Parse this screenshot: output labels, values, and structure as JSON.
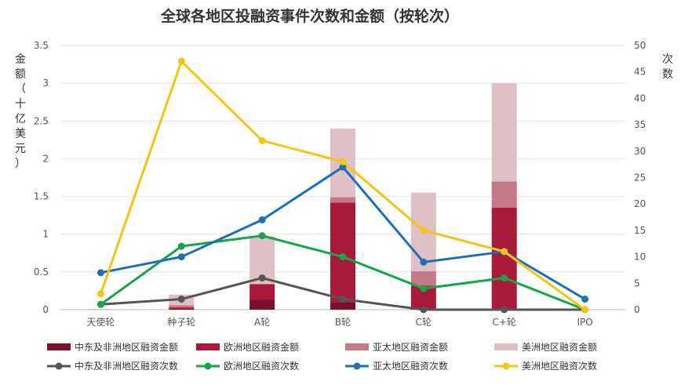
{
  "chart_data": {
    "type": "bar+line",
    "title": "全球各地区投融资事件次数和金额（按轮次）",
    "ylabel_left": "金额（十亿美元）",
    "ylabel_right": "次数",
    "categories": [
      "天使轮",
      "种子轮",
      "A轮",
      "B轮",
      "C轮",
      "C+轮",
      "IPO"
    ],
    "ylim_left": [
      0,
      3.5
    ],
    "yticks_left": [
      "0",
      "0.5",
      "1",
      "1.5",
      "2",
      "2.5",
      "3",
      "3.5"
    ],
    "ylim_right": [
      0,
      50
    ],
    "yticks_right": [
      "0",
      "5",
      "10",
      "15",
      "20",
      "25",
      "30",
      "35",
      "40",
      "45",
      "50"
    ],
    "grid": true,
    "legend_placement": "bottom",
    "bar_series": [
      {
        "name": "中东及非洲地区融资金额",
        "color": "#7a1030",
        "values": [
          0.0,
          0.01,
          0.13,
          0.1,
          0.0,
          0.0,
          0.0
        ]
      },
      {
        "name": "欧洲地区融资金额",
        "color": "#a8193a",
        "values": [
          0.0,
          0.02,
          0.21,
          1.32,
          0.32,
          1.35,
          0.0
        ]
      },
      {
        "name": "亚太地区融资金额",
        "color": "#c47a88",
        "values": [
          0.0,
          0.03,
          0.0,
          0.07,
          0.19,
          0.35,
          0.0
        ]
      },
      {
        "name": "美洲地区融资金额",
        "color": "#dfc0c6",
        "values": [
          0.01,
          0.14,
          0.63,
          0.91,
          1.04,
          1.3,
          0.0
        ]
      }
    ],
    "line_series": [
      {
        "name": "中东及非洲地区融资次数",
        "color": "#555555",
        "values": [
          1,
          2,
          6,
          2,
          0,
          0,
          0
        ]
      },
      {
        "name": "欧洲地区融资次数",
        "color": "#1aa34a",
        "values": [
          1,
          12,
          14,
          10,
          4,
          6,
          0
        ]
      },
      {
        "name": "亚太地区融资次数",
        "color": "#1f6fb2",
        "values": [
          7,
          10,
          17,
          27,
          9,
          11,
          2
        ]
      },
      {
        "name": "美洲地区融资次数",
        "color": "#f2c518",
        "values": [
          3,
          47,
          32,
          28,
          15,
          11,
          0
        ]
      }
    ]
  }
}
